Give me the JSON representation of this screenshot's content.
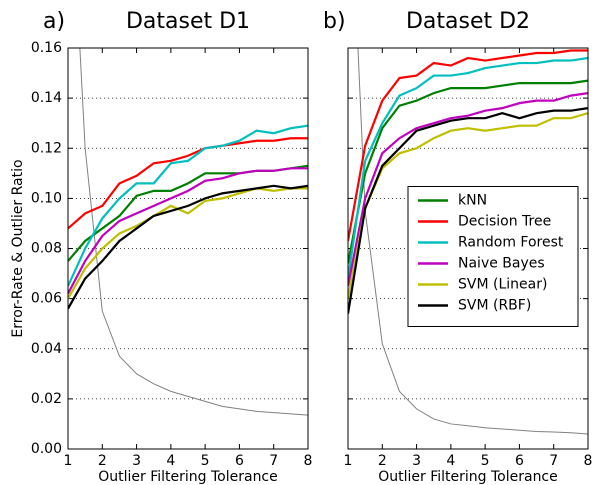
{
  "chart_data": [
    {
      "type": "line",
      "panel_label": "a)",
      "title": "Dataset D1",
      "xlabel": "Outlier Filtering Tolerance",
      "ylabel": "Error-Rate & Outlier Ratio",
      "x": [
        1,
        1.5,
        2,
        2.5,
        3,
        3.5,
        4,
        4.5,
        5,
        5.5,
        6,
        6.5,
        7,
        7.5,
        8
      ],
      "xlim": [
        1,
        8
      ],
      "xticks": [
        1,
        2,
        3,
        4,
        5,
        6,
        7,
        8
      ],
      "ylim": [
        0,
        0.16
      ],
      "yticks": [
        {
          "value": 0,
          "label": "0.00"
        },
        0.02,
        0.04,
        0.06,
        0.08,
        {
          "value": 0.1,
          "label": "0.10"
        },
        0.12,
        0.14,
        0.16
      ],
      "grid": true,
      "series": [
        {
          "color": "#808080",
          "width": 1,
          "values": [
            0.25,
            0.12,
            0.055,
            0.037,
            0.03,
            0.026,
            0.023,
            0.021,
            0.019,
            0.017,
            0.016,
            0.015,
            0.0145,
            0.014,
            0.0135
          ]
        },
        {
          "color": "#007f00",
          "values": [
            0.075,
            0.083,
            0.088,
            0.093,
            0.101,
            0.103,
            0.103,
            0.106,
            0.11,
            0.11,
            0.11,
            0.111,
            0.111,
            0.112,
            0.113
          ]
        },
        {
          "color": "#ff0000",
          "values": [
            0.088,
            0.094,
            0.097,
            0.106,
            0.109,
            0.114,
            0.115,
            0.117,
            0.12,
            0.121,
            0.122,
            0.123,
            0.123,
            0.124,
            0.124
          ]
        },
        {
          "color": "#00bfbf",
          "values": [
            0.065,
            0.08,
            0.092,
            0.1,
            0.106,
            0.106,
            0.114,
            0.115,
            0.12,
            0.121,
            0.123,
            0.127,
            0.126,
            0.128,
            0.129
          ]
        },
        {
          "color": "#bf00bf",
          "values": [
            0.062,
            0.075,
            0.085,
            0.091,
            0.094,
            0.097,
            0.1,
            0.103,
            0.107,
            0.108,
            0.11,
            0.111,
            0.111,
            0.112,
            0.112
          ]
        },
        {
          "color": "#bfbf00",
          "values": [
            0.06,
            0.072,
            0.08,
            0.086,
            0.089,
            0.093,
            0.097,
            0.094,
            0.099,
            0.1,
            0.102,
            0.104,
            0.103,
            0.104,
            0.104
          ]
        },
        {
          "color": "#000000",
          "values": [
            0.056,
            0.068,
            0.075,
            0.083,
            0.088,
            0.093,
            0.095,
            0.097,
            0.1,
            0.102,
            0.103,
            0.104,
            0.105,
            0.104,
            0.105
          ]
        }
      ]
    },
    {
      "type": "line",
      "panel_label": "b)",
      "title": "Dataset D2",
      "xlabel": "Outlier Filtering Tolerance",
      "x": [
        1,
        1.5,
        2,
        2.5,
        3,
        3.5,
        4,
        4.5,
        5,
        5.5,
        6,
        6.5,
        7,
        7.5,
        8
      ],
      "xlim": [
        1,
        8
      ],
      "xticks": [
        1,
        2,
        3,
        4,
        5,
        6,
        7,
        8
      ],
      "ylim": [
        0,
        0.16
      ],
      "yticks": [
        0,
        0.02,
        0.04,
        0.06,
        0.08,
        0.1,
        0.12,
        0.14,
        0.16
      ],
      "show_ytick_labels": false,
      "grid": true,
      "legend": "center right",
      "series": [
        {
          "color": "#808080",
          "width": 1,
          "values": [
            0.25,
            0.095,
            0.042,
            0.023,
            0.016,
            0.012,
            0.01,
            0.0093,
            0.0085,
            0.008,
            0.0075,
            0.007,
            0.0068,
            0.0065,
            0.006
          ]
        },
        {
          "name": "kNN",
          "color": "#007f00",
          "values": [
            0.074,
            0.11,
            0.128,
            0.137,
            0.139,
            0.142,
            0.144,
            0.144,
            0.144,
            0.145,
            0.146,
            0.146,
            0.146,
            0.146,
            0.147
          ]
        },
        {
          "name": "Decision Tree",
          "color": "#ff0000",
          "values": [
            0.083,
            0.121,
            0.139,
            0.148,
            0.149,
            0.154,
            0.153,
            0.156,
            0.155,
            0.156,
            0.157,
            0.158,
            0.158,
            0.159,
            0.159
          ]
        },
        {
          "name": "Random Forest",
          "color": "#00bfbf",
          "values": [
            0.068,
            0.115,
            0.13,
            0.141,
            0.144,
            0.149,
            0.149,
            0.15,
            0.152,
            0.153,
            0.154,
            0.154,
            0.155,
            0.155,
            0.156
          ]
        },
        {
          "name": "Naive Bayes",
          "color": "#bf00bf",
          "values": [
            0.065,
            0.1,
            0.118,
            0.124,
            0.128,
            0.13,
            0.132,
            0.133,
            0.135,
            0.136,
            0.138,
            0.139,
            0.139,
            0.141,
            0.142
          ]
        },
        {
          "name": "SVM (Linear)",
          "color": "#bfbf00",
          "values": [
            0.06,
            0.096,
            0.112,
            0.118,
            0.12,
            0.124,
            0.127,
            0.128,
            0.127,
            0.128,
            0.129,
            0.129,
            0.132,
            0.132,
            0.134
          ]
        },
        {
          "name": "SVM (RBF)",
          "color": "#000000",
          "values": [
            0.054,
            0.096,
            0.113,
            0.12,
            0.127,
            0.129,
            0.131,
            0.132,
            0.132,
            0.134,
            0.132,
            0.134,
            0.135,
            0.135,
            0.136
          ]
        }
      ]
    }
  ]
}
